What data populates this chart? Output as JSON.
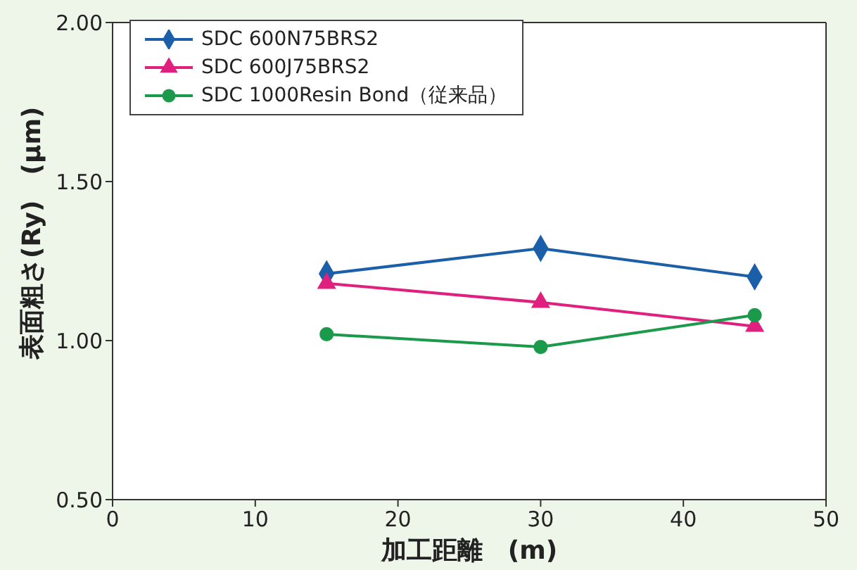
{
  "chart_data": {
    "type": "line",
    "xlabel": "加工距離　(m)",
    "ylabel": "表面粗さ(Ry)　(μm)",
    "xlim": [
      0,
      50
    ],
    "xticks": [
      0,
      10,
      20,
      30,
      40,
      50
    ],
    "ylim": [
      0.5,
      2.0
    ],
    "yticks": [
      {
        "value": 0.5,
        "label": "0.50"
      },
      {
        "value": 1.0,
        "label": "1.00"
      },
      {
        "value": 1.5,
        "label": "1.50"
      },
      {
        "value": 2.0,
        "label": "2.00"
      }
    ],
    "x": [
      15,
      30,
      45
    ],
    "legend": "top left",
    "grid": false,
    "series": [
      {
        "name": "SDC 600N75BRS2",
        "color": "#1a5fa8",
        "marker": "diamond",
        "values": [
          1.21,
          1.29,
          1.2
        ]
      },
      {
        "name": "SDC 600J75BRS2",
        "color": "#e0207f",
        "marker": "triangle",
        "values": [
          1.18,
          1.12,
          1.045
        ]
      },
      {
        "name": "SDC 1000Resin Bond（従来品）",
        "color": "#1a9a4a",
        "marker": "circle",
        "values": [
          1.02,
          0.98,
          1.08
        ]
      }
    ]
  }
}
